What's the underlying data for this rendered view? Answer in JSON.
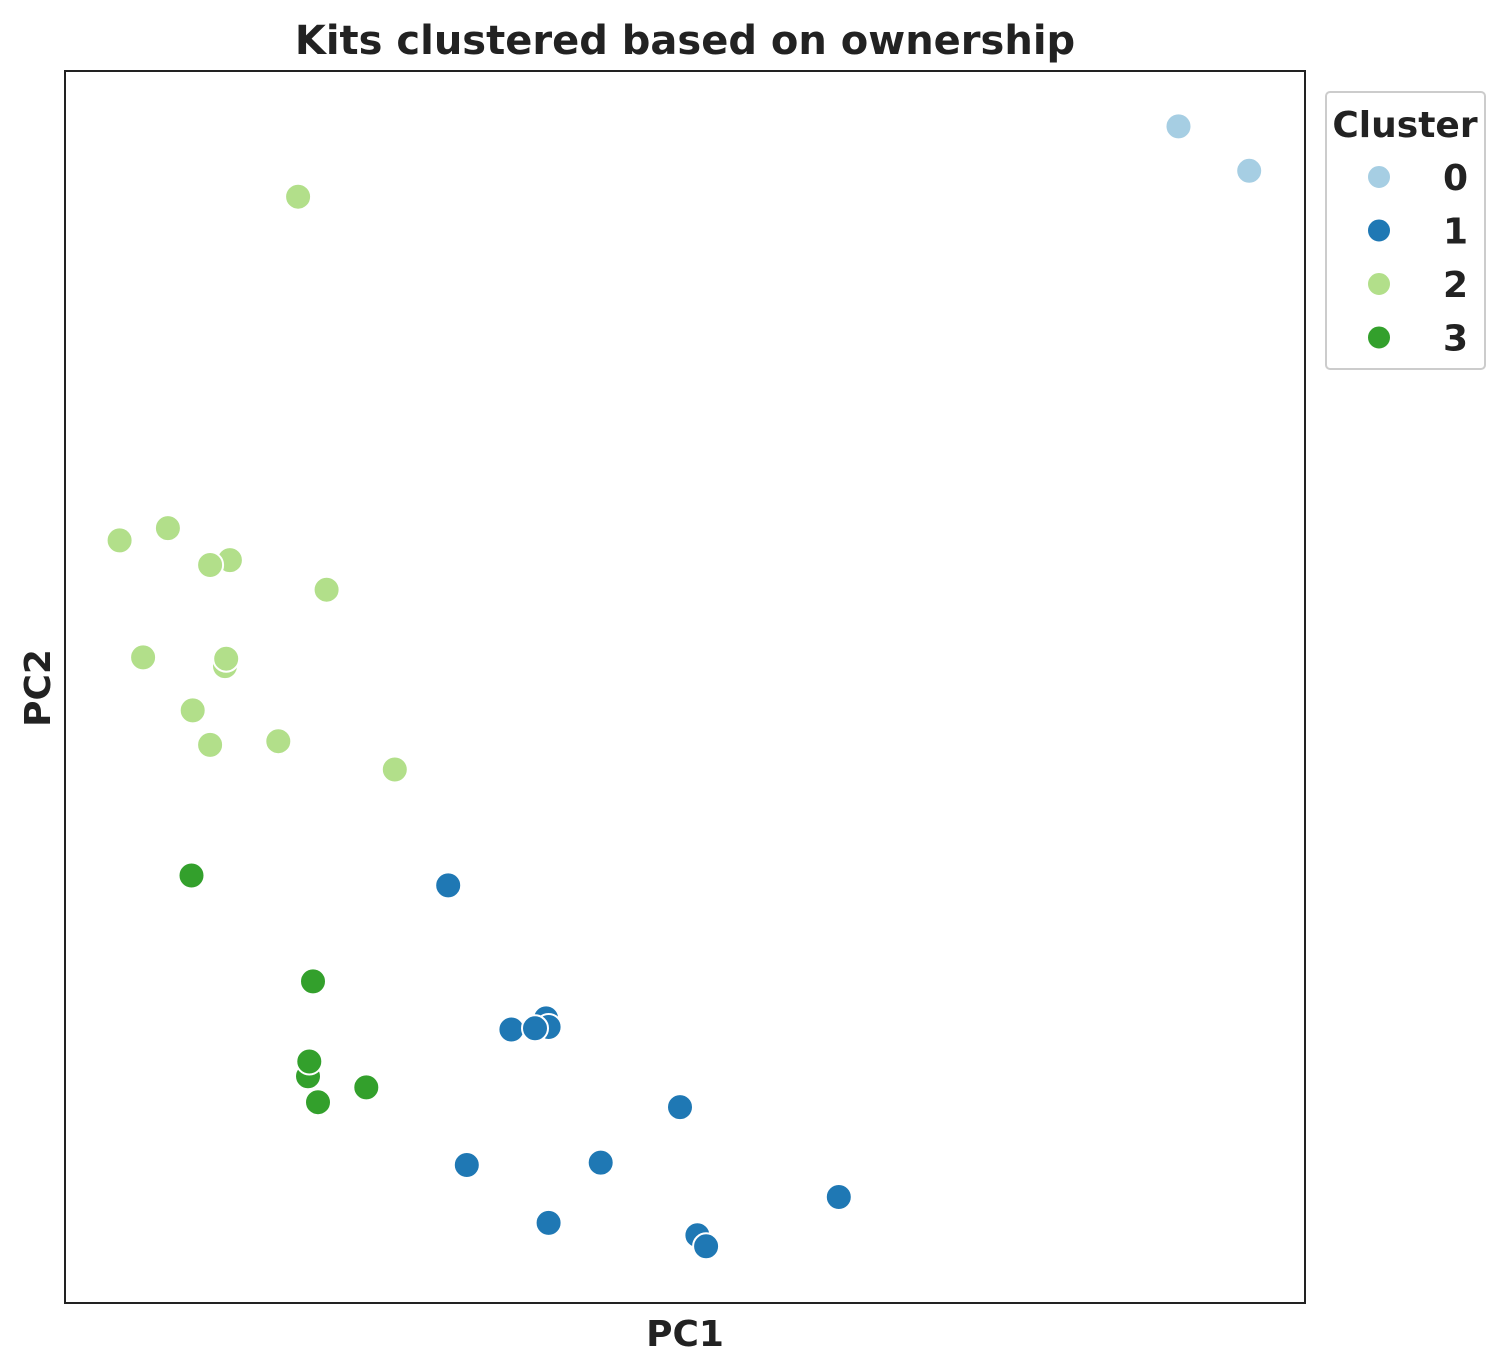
{
  "chart_data": {
    "type": "scatter",
    "title": "Kits clustered based on ownership",
    "xlabel": "PC1",
    "ylabel": "PC2",
    "xlim": [
      0,
      100
    ],
    "ylim": [
      0,
      100
    ],
    "grid": false,
    "x_ticks_shown": false,
    "y_ticks_shown": false,
    "legend": {
      "title": "Cluster",
      "placement": "outside-top-right"
    },
    "series": [
      {
        "name": "0",
        "color": "#a6cee3",
        "points": [
          {
            "x": 89.8,
            "y": 95.5
          },
          {
            "x": 95.5,
            "y": 91.9
          }
        ]
      },
      {
        "name": "1",
        "color": "#1f78b4",
        "points": [
          {
            "x": 30.9,
            "y": 33.9
          },
          {
            "x": 38.8,
            "y": 23.1
          },
          {
            "x": 39.0,
            "y": 22.4
          },
          {
            "x": 36.0,
            "y": 22.2
          },
          {
            "x": 37.9,
            "y": 22.3
          },
          {
            "x": 49.6,
            "y": 15.9
          },
          {
            "x": 43.2,
            "y": 11.4
          },
          {
            "x": 32.4,
            "y": 11.2
          },
          {
            "x": 39.0,
            "y": 6.5
          },
          {
            "x": 62.4,
            "y": 8.6
          },
          {
            "x": 51.0,
            "y": 5.5
          },
          {
            "x": 51.7,
            "y": 4.6
          }
        ]
      },
      {
        "name": "2",
        "color": "#b2df8a",
        "points": [
          {
            "x": 18.8,
            "y": 89.8
          },
          {
            "x": 4.4,
            "y": 61.9
          },
          {
            "x": 8.3,
            "y": 62.9
          },
          {
            "x": 13.3,
            "y": 60.3
          },
          {
            "x": 11.7,
            "y": 59.9
          },
          {
            "x": 21.1,
            "y": 57.9
          },
          {
            "x": 6.3,
            "y": 52.4
          },
          {
            "x": 12.9,
            "y": 51.7
          },
          {
            "x": 13.0,
            "y": 52.3
          },
          {
            "x": 10.3,
            "y": 48.1
          },
          {
            "x": 11.7,
            "y": 45.3
          },
          {
            "x": 17.2,
            "y": 45.6
          },
          {
            "x": 26.6,
            "y": 43.3
          }
        ]
      },
      {
        "name": "3",
        "color": "#33a02c",
        "points": [
          {
            "x": 10.2,
            "y": 34.7
          },
          {
            "x": 20.0,
            "y": 26.1
          },
          {
            "x": 19.6,
            "y": 18.4
          },
          {
            "x": 19.7,
            "y": 19.6
          },
          {
            "x": 20.4,
            "y": 16.3
          },
          {
            "x": 24.3,
            "y": 17.5
          }
        ]
      }
    ]
  }
}
